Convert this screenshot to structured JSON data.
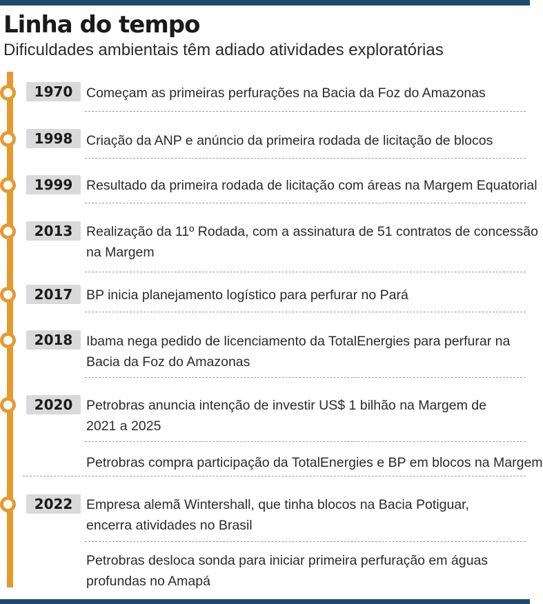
{
  "header": {
    "title": "Linha do tempo",
    "subtitle": "Dificuldades ambientais têm adiado atividades exploratórias"
  },
  "colors": {
    "accent": "#e49a2e",
    "year_badge_bg": "#d9d9d9",
    "rule": "#1f4a6e"
  },
  "events": [
    {
      "year": "1970",
      "items": [
        [
          "Começam as primeiras perfurações na Bacia da Foz do Amazonas"
        ]
      ]
    },
    {
      "year": "1998",
      "items": [
        [
          "Criação da ANP e anúncio da primeira rodada de licitação de blocos"
        ]
      ]
    },
    {
      "year": "1999",
      "items": [
        [
          "Resultado da primeira rodada de licitação com áreas na Margem Equatorial"
        ]
      ]
    },
    {
      "year": "2013",
      "items": [
        [
          "Realização da 11º Rodada, com a assinatura de 51 contratos de concessão",
          "na Margem"
        ]
      ]
    },
    {
      "year": "2017",
      "items": [
        [
          "BP inicia planejamento logístico para perfurar no Pará"
        ]
      ]
    },
    {
      "year": "2018",
      "items": [
        [
          "Ibama nega pedido de licenciamento da TotalEnergies para perfurar na",
          "Bacia da Foz do Amazonas"
        ]
      ]
    },
    {
      "year": "2020",
      "items": [
        [
          "Petrobras anuncia intenção de investir US$ 1 bilhão na Margem de",
          "2021 a 2025"
        ],
        [
          "Petrobras compra participação da TotalEnergies e BP em blocos na Margem"
        ]
      ]
    },
    {
      "year": "2022",
      "items": [
        [
          "Empresa alemã Wintershall, que tinha blocos na Bacia Potiguar,",
          "encerra atividades no Brasil"
        ],
        [
          "Petrobras desloca sonda para iniciar primeira perfuração em águas",
          "profundas no Amapá"
        ]
      ]
    }
  ]
}
